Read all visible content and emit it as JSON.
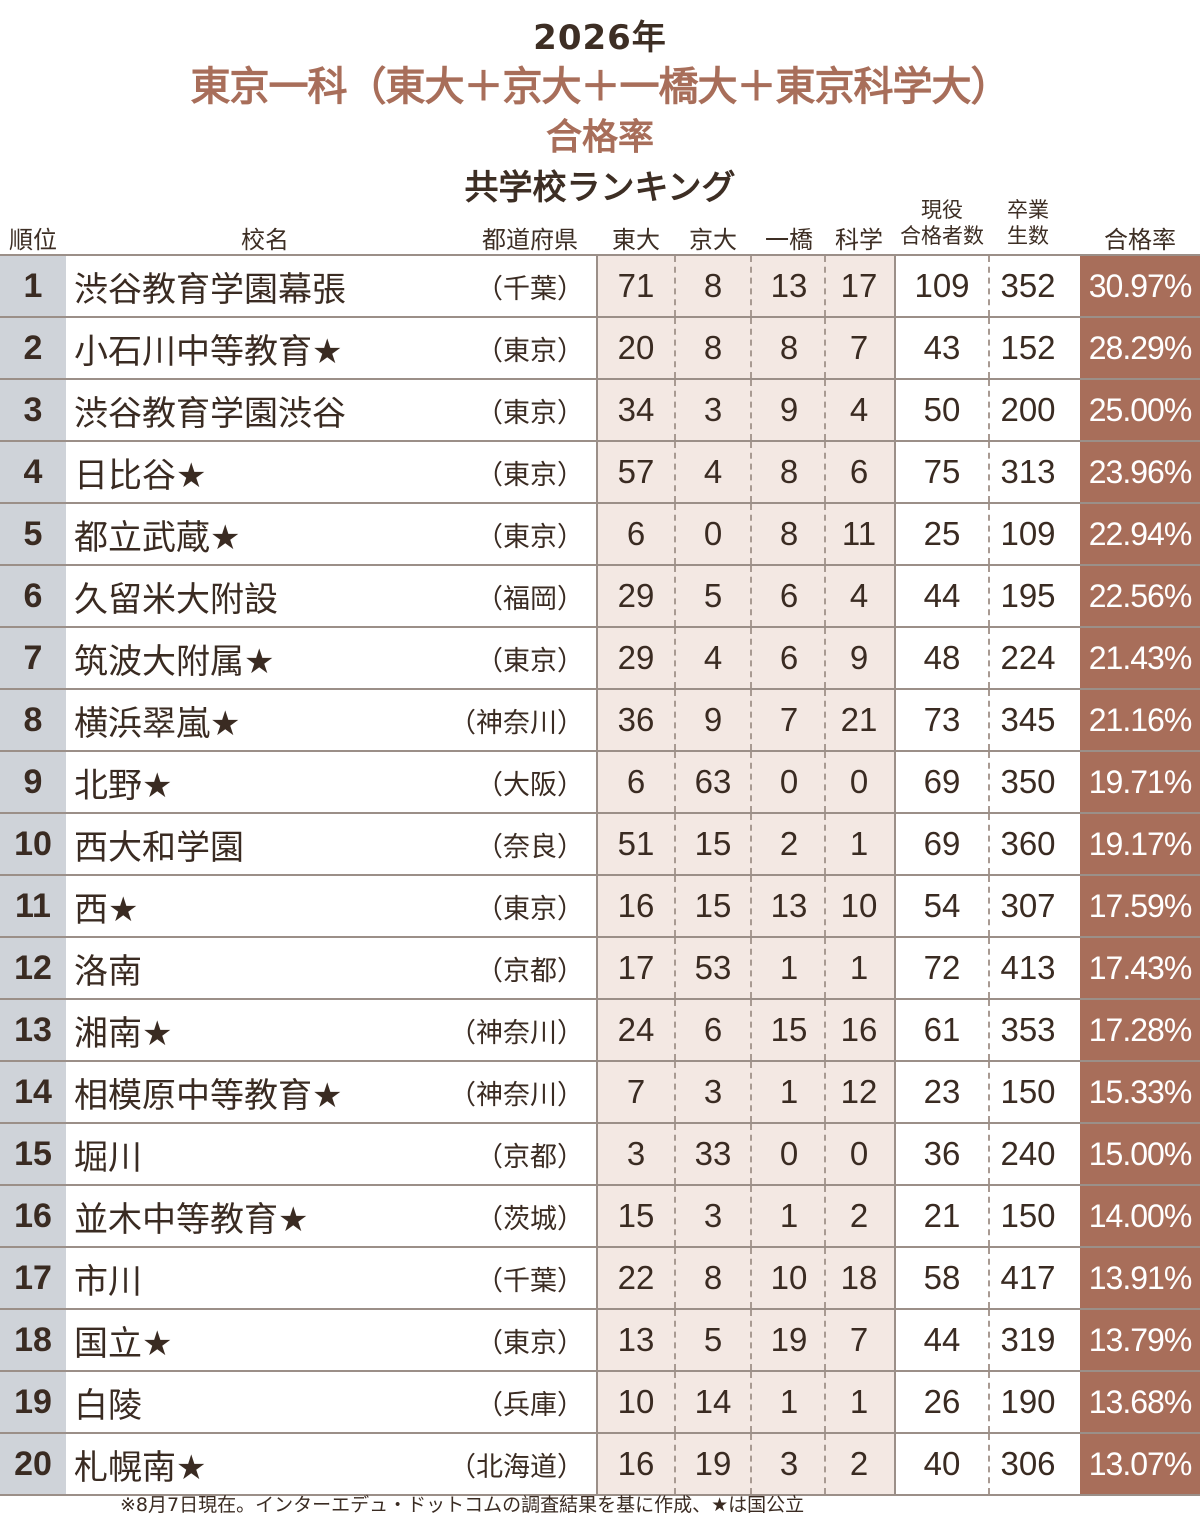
{
  "title": {
    "year": "2026年",
    "main": "東京一科（東大＋京大＋一橋大＋東京科学大）",
    "rate": "合格率",
    "sub": "共学校ランキング"
  },
  "headers": {
    "rank": "順位",
    "name": "校名",
    "pref": "都道府県",
    "todai": "東大",
    "kyodai": "京大",
    "hitotsubashi": "一橋",
    "kagaku": "科学",
    "genneki_1": "現役",
    "genneki_2": "合格者数",
    "sotsu_1": "卒業",
    "sotsu_2": "生数",
    "rate": "合格率"
  },
  "rows": [
    {
      "rank": "1",
      "name": "渋谷教育学園幕張",
      "pref": "（千葉）",
      "todai": "71",
      "kyodai": "8",
      "hitotsubashi": "13",
      "kagaku": "17",
      "genneki": "109",
      "sotsu": "352",
      "rate": "30.97%"
    },
    {
      "rank": "2",
      "name": "小石川中等教育★",
      "pref": "（東京）",
      "todai": "20",
      "kyodai": "8",
      "hitotsubashi": "8",
      "kagaku": "7",
      "genneki": "43",
      "sotsu": "152",
      "rate": "28.29%"
    },
    {
      "rank": "3",
      "name": "渋谷教育学園渋谷",
      "pref": "（東京）",
      "todai": "34",
      "kyodai": "3",
      "hitotsubashi": "9",
      "kagaku": "4",
      "genneki": "50",
      "sotsu": "200",
      "rate": "25.00%"
    },
    {
      "rank": "4",
      "name": "日比谷★",
      "pref": "（東京）",
      "todai": "57",
      "kyodai": "4",
      "hitotsubashi": "8",
      "kagaku": "6",
      "genneki": "75",
      "sotsu": "313",
      "rate": "23.96%"
    },
    {
      "rank": "5",
      "name": "都立武蔵★",
      "pref": "（東京）",
      "todai": "6",
      "kyodai": "0",
      "hitotsubashi": "8",
      "kagaku": "11",
      "genneki": "25",
      "sotsu": "109",
      "rate": "22.94%"
    },
    {
      "rank": "6",
      "name": "久留米大附設",
      "pref": "（福岡）",
      "todai": "29",
      "kyodai": "5",
      "hitotsubashi": "6",
      "kagaku": "4",
      "genneki": "44",
      "sotsu": "195",
      "rate": "22.56%"
    },
    {
      "rank": "7",
      "name": "筑波大附属★",
      "pref": "（東京）",
      "todai": "29",
      "kyodai": "4",
      "hitotsubashi": "6",
      "kagaku": "9",
      "genneki": "48",
      "sotsu": "224",
      "rate": "21.43%"
    },
    {
      "rank": "8",
      "name": "横浜翠嵐★",
      "pref": "（神奈川）",
      "todai": "36",
      "kyodai": "9",
      "hitotsubashi": "7",
      "kagaku": "21",
      "genneki": "73",
      "sotsu": "345",
      "rate": "21.16%"
    },
    {
      "rank": "9",
      "name": "北野★",
      "pref": "（大阪）",
      "todai": "6",
      "kyodai": "63",
      "hitotsubashi": "0",
      "kagaku": "0",
      "genneki": "69",
      "sotsu": "350",
      "rate": "19.71%"
    },
    {
      "rank": "10",
      "name": "西大和学園",
      "pref": "（奈良）",
      "todai": "51",
      "kyodai": "15",
      "hitotsubashi": "2",
      "kagaku": "1",
      "genneki": "69",
      "sotsu": "360",
      "rate": "19.17%"
    },
    {
      "rank": "11",
      "name": "西★",
      "pref": "（東京）",
      "todai": "16",
      "kyodai": "15",
      "hitotsubashi": "13",
      "kagaku": "10",
      "genneki": "54",
      "sotsu": "307",
      "rate": "17.59%"
    },
    {
      "rank": "12",
      "name": "洛南",
      "pref": "（京都）",
      "todai": "17",
      "kyodai": "53",
      "hitotsubashi": "1",
      "kagaku": "1",
      "genneki": "72",
      "sotsu": "413",
      "rate": "17.43%"
    },
    {
      "rank": "13",
      "name": "湘南★",
      "pref": "（神奈川）",
      "todai": "24",
      "kyodai": "6",
      "hitotsubashi": "15",
      "kagaku": "16",
      "genneki": "61",
      "sotsu": "353",
      "rate": "17.28%"
    },
    {
      "rank": "14",
      "name": "相模原中等教育★",
      "pref": "（神奈川）",
      "todai": "7",
      "kyodai": "3",
      "hitotsubashi": "1",
      "kagaku": "12",
      "genneki": "23",
      "sotsu": "150",
      "rate": "15.33%"
    },
    {
      "rank": "15",
      "name": "堀川",
      "pref": "（京都）",
      "todai": "3",
      "kyodai": "33",
      "hitotsubashi": "0",
      "kagaku": "0",
      "genneki": "36",
      "sotsu": "240",
      "rate": "15.00%"
    },
    {
      "rank": "16",
      "name": "並木中等教育★",
      "pref": "（茨城）",
      "todai": "15",
      "kyodai": "3",
      "hitotsubashi": "1",
      "kagaku": "2",
      "genneki": "21",
      "sotsu": "150",
      "rate": "14.00%"
    },
    {
      "rank": "17",
      "name": "市川",
      "pref": "（千葉）",
      "todai": "22",
      "kyodai": "8",
      "hitotsubashi": "10",
      "kagaku": "18",
      "genneki": "58",
      "sotsu": "417",
      "rate": "13.91%"
    },
    {
      "rank": "18",
      "name": "国立★",
      "pref": "（東京）",
      "todai": "13",
      "kyodai": "5",
      "hitotsubashi": "19",
      "kagaku": "7",
      "genneki": "44",
      "sotsu": "319",
      "rate": "13.79%"
    },
    {
      "rank": "19",
      "name": "白陵",
      "pref": "（兵庫）",
      "todai": "10",
      "kyodai": "14",
      "hitotsubashi": "1",
      "kagaku": "1",
      "genneki": "26",
      "sotsu": "190",
      "rate": "13.68%"
    },
    {
      "rank": "20",
      "name": "札幌南★",
      "pref": "（北海道）",
      "todai": "16",
      "kyodai": "19",
      "hitotsubashi": "3",
      "kagaku": "2",
      "genneki": "40",
      "sotsu": "306",
      "rate": "13.07%"
    }
  ],
  "footnote": "※8月7日現在。インターエデュ・ドットコムの調査結果を基に作成、★は国公立",
  "colors": {
    "accent": "#a86e5a",
    "rank_bg": "#cfd3d9",
    "numbers_bg": "#f3e8e3",
    "text": "#3a2b22"
  }
}
